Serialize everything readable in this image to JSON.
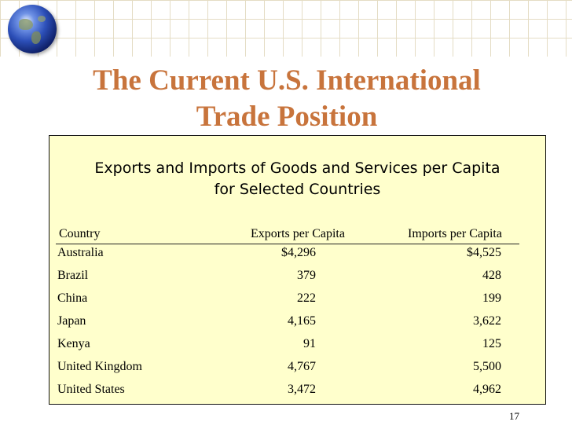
{
  "slide": {
    "title_line1": "The Current U.S. International",
    "title_line2": "Trade Position",
    "page_number": "17"
  },
  "table": {
    "heading_line1": "Exports and Imports of Goods and Services per Capita",
    "heading_line2": "for Selected Countries",
    "columns": [
      "Country",
      "Exports per Capita",
      "Imports per Capita"
    ],
    "rows": [
      {
        "country": "Australia",
        "exports": "$4,296",
        "imports": "$4,525"
      },
      {
        "country": "Brazil",
        "exports": "379",
        "imports": "428"
      },
      {
        "country": "China",
        "exports": "222",
        "imports": "199"
      },
      {
        "country": "Japan",
        "exports": "4,165",
        "imports": "3,622"
      },
      {
        "country": "Kenya",
        "exports": "91",
        "imports": "125"
      },
      {
        "country": "United Kingdom",
        "exports": "4,767",
        "imports": "5,500"
      },
      {
        "country": "United States",
        "exports": "3,472",
        "imports": "4,962"
      }
    ]
  },
  "colors": {
    "title": "#c8743c",
    "panel_background": "#ffffcc",
    "grid_lines": "#e4dcc4"
  },
  "icons": {
    "logo": "globe-icon"
  }
}
